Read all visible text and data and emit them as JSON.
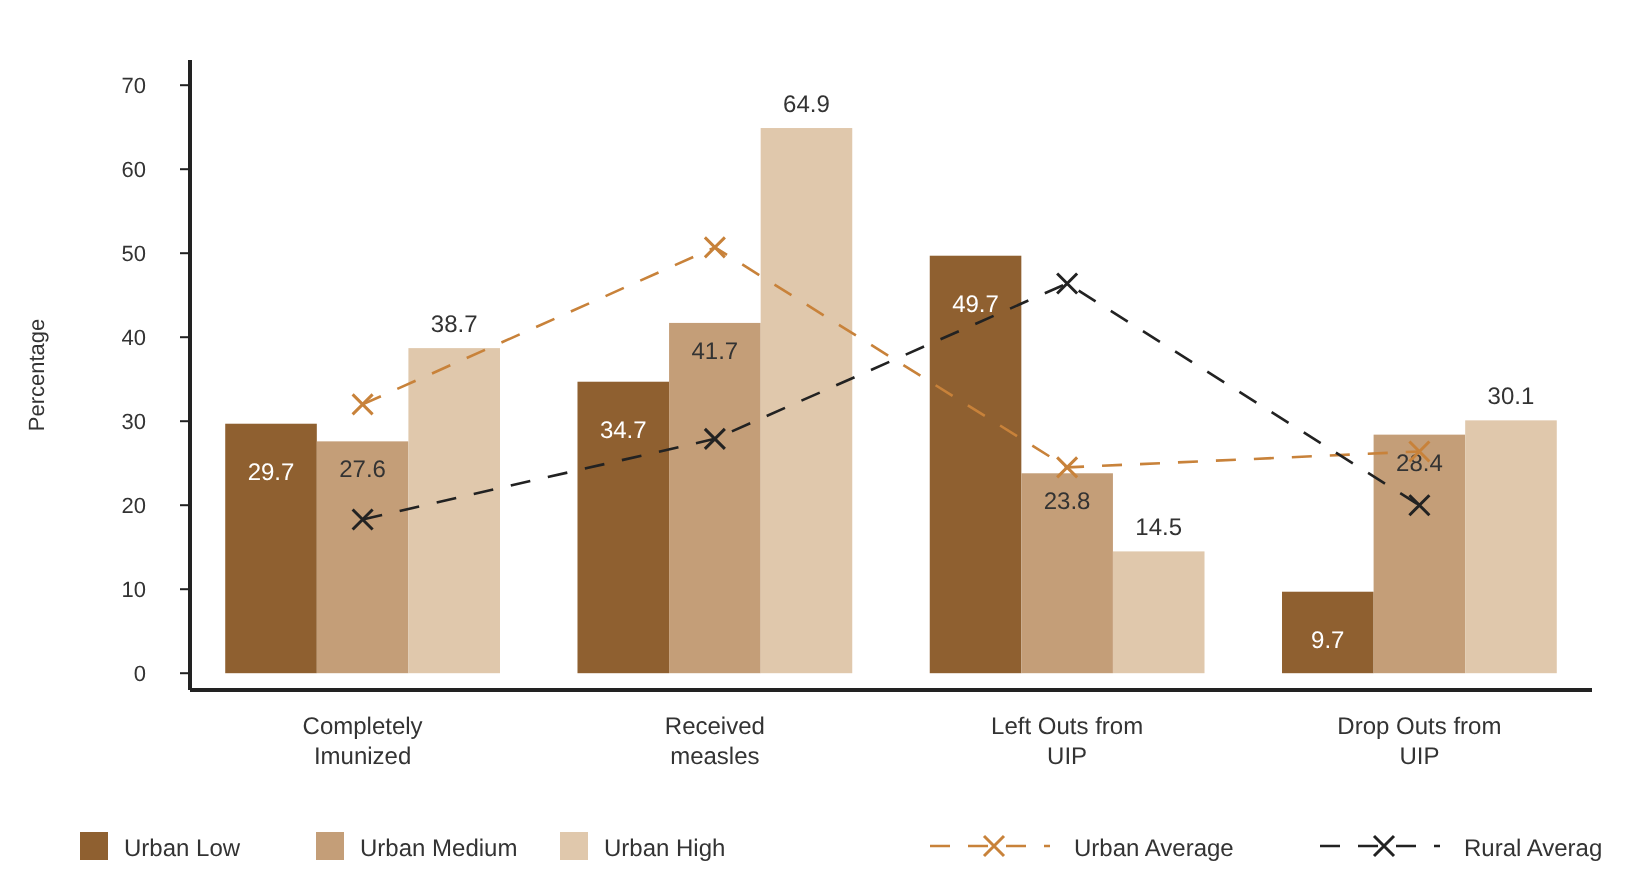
{
  "chart_data": {
    "type": "bar",
    "ylabel": "Percentage",
    "categories": [
      "Completely\nImunized",
      "Received\nmeasles",
      "Left Outs from\nUIP",
      "Drop Outs from\nUIP"
    ],
    "series": [
      {
        "name": "Urban Low",
        "color": "#8f6030",
        "values": [
          29.7,
          34.7,
          49.7,
          9.7
        ],
        "value_labels": [
          "29.7",
          "34.7",
          "49.7",
          "9.7"
        ]
      },
      {
        "name": "Urban Medium",
        "color": "#c49e78",
        "values": [
          27.6,
          41.7,
          23.8,
          28.4
        ],
        "value_labels": [
          "27.6",
          "41.7",
          "23.8",
          "28.4"
        ]
      },
      {
        "name": "Urban High",
        "color": "#e0c8ac",
        "values": [
          38.7,
          64.9,
          14.5,
          30.1
        ],
        "value_labels": [
          "38.7",
          "64.9",
          "14.5",
          "30.1"
        ]
      },
      {
        "name": "Urban Average",
        "type": "line",
        "color": "#c8823a",
        "line_style": "dashed",
        "marker": "cross",
        "values": [
          32,
          50.7,
          24.5,
          26.4
        ]
      },
      {
        "name": "Rural Averag",
        "type": "line",
        "color": "#222222",
        "line_style": "dashed",
        "marker": "cross",
        "values": [
          18.3,
          27.9,
          46.4,
          20
        ]
      }
    ],
    "ylim": [
      -2,
      73
    ],
    "yticks": [
      0,
      10,
      20,
      30,
      40,
      50,
      60,
      70
    ],
    "legend": "bottom",
    "grid": false
  }
}
